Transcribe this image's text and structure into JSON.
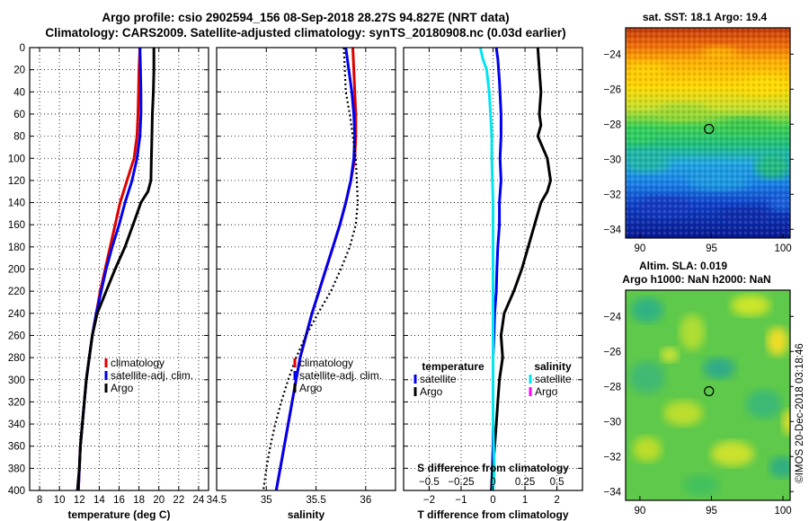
{
  "titles": {
    "line1": "Argo profile: csio 2902594_156 08-Sep-2018 28.27S 94.827E (NRT data)",
    "line2": "Climatology: CARS2009. Satellite-adjusted climatology: synTS_20180908.nc (0.03d earlier)"
  },
  "chart_data": [
    {
      "type": "line",
      "name": "temperature",
      "xlabel": "temperature (deg C)",
      "xlim": [
        7,
        25
      ],
      "xticks": [
        8,
        10,
        12,
        14,
        16,
        18,
        20,
        22,
        24
      ],
      "ylim": [
        0,
        400
      ],
      "yticks": [
        0,
        20,
        40,
        60,
        80,
        100,
        120,
        140,
        160,
        180,
        200,
        220,
        240,
        260,
        280,
        300,
        320,
        340,
        360,
        380,
        400
      ],
      "grid": true,
      "legend": [
        "climatology",
        "satellite-adj. clim.",
        "Argo"
      ],
      "series": [
        {
          "name": "climatology",
          "color": "#e00000",
          "style": "solid",
          "depth": [
            0,
            20,
            40,
            60,
            80,
            100,
            120,
            140,
            160,
            180,
            200,
            220,
            240,
            260,
            280,
            300,
            320,
            340,
            360,
            380,
            400
          ],
          "values": [
            18.1,
            18.0,
            17.95,
            17.9,
            17.8,
            17.5,
            16.8,
            16.1,
            15.6,
            15.1,
            14.6,
            14.1,
            13.7,
            13.3,
            13.0,
            12.7,
            12.5,
            12.3,
            12.1,
            12.0,
            11.9
          ]
        },
        {
          "name": "satellite-adj. clim.",
          "color": "#0000ee",
          "style": "solid",
          "depth": [
            0,
            20,
            40,
            60,
            80,
            100,
            120,
            140,
            160,
            180,
            200,
            220,
            240,
            260,
            280,
            300,
            320,
            340,
            360,
            380,
            400
          ],
          "values": [
            18.1,
            18.15,
            18.2,
            18.2,
            18.1,
            17.8,
            17.3,
            16.6,
            16.0,
            15.3,
            14.7,
            14.2,
            13.7,
            13.3,
            13.0,
            12.7,
            12.5,
            12.3,
            12.1,
            12.0,
            11.9
          ]
        },
        {
          "name": "Argo",
          "color": "#000000",
          "style": "solid",
          "depth": [
            0,
            20,
            40,
            60,
            80,
            100,
            120,
            130,
            140,
            160,
            180,
            200,
            220,
            240,
            260,
            280,
            300,
            320,
            340,
            360,
            380,
            400
          ],
          "values": [
            19.5,
            19.5,
            19.45,
            19.35,
            19.3,
            19.25,
            19.2,
            18.9,
            18.2,
            17.4,
            16.6,
            15.6,
            14.7,
            13.8,
            13.3,
            13.0,
            12.7,
            12.5,
            12.3,
            12.1,
            12.0,
            11.8
          ]
        }
      ]
    },
    {
      "type": "line",
      "name": "salinity",
      "xlabel": "salinity",
      "xlim": [
        34.5,
        36.3
      ],
      "xticks": [
        "34.5",
        "35",
        "35.5",
        "36"
      ],
      "ylim": [
        0,
        400
      ],
      "grid": true,
      "legend": [
        "climatology",
        "satellite-adj. clim.",
        "Argo"
      ],
      "series": [
        {
          "name": "climatology",
          "color": "#e00000",
          "style": "solid",
          "depth": [
            0,
            20,
            40,
            60,
            80,
            100,
            120,
            140,
            160,
            180,
            200,
            220,
            240,
            260,
            280,
            300,
            320,
            340,
            360,
            380,
            400
          ],
          "values": [
            35.87,
            35.88,
            35.89,
            35.9,
            35.9,
            35.89,
            35.85,
            35.8,
            35.74,
            35.67,
            35.6,
            35.53,
            35.46,
            35.4,
            35.34,
            35.3,
            35.26,
            35.22,
            35.18,
            35.14,
            35.1
          ]
        },
        {
          "name": "satellite-adj. clim.",
          "color": "#0000ee",
          "style": "solid",
          "depth": [
            0,
            20,
            40,
            60,
            80,
            100,
            120,
            140,
            160,
            180,
            200,
            220,
            240,
            260,
            280,
            300,
            320,
            340,
            360,
            380,
            400
          ],
          "values": [
            35.8,
            35.83,
            35.86,
            35.88,
            35.89,
            35.88,
            35.85,
            35.8,
            35.74,
            35.67,
            35.6,
            35.53,
            35.46,
            35.4,
            35.34,
            35.3,
            35.26,
            35.22,
            35.18,
            35.14,
            35.1
          ]
        },
        {
          "name": "Argo",
          "color": "#000000",
          "style": "dotted",
          "depth": [
            0,
            20,
            40,
            60,
            80,
            100,
            120,
            140,
            160,
            180,
            200,
            220,
            240,
            260,
            280,
            300,
            320,
            340,
            360,
            380,
            400
          ],
          "values": [
            35.78,
            35.79,
            35.8,
            35.84,
            35.87,
            35.9,
            35.91,
            35.92,
            35.9,
            35.84,
            35.75,
            35.65,
            35.52,
            35.4,
            35.3,
            35.22,
            35.15,
            35.09,
            35.04,
            35.0,
            34.97
          ]
        }
      ]
    },
    {
      "type": "line",
      "name": "differences",
      "xlabel": "T difference from climatology",
      "xlabel2": "S difference from climatology",
      "xlim": [
        -2.8,
        2.8
      ],
      "xticks": [
        "-2",
        "-1",
        "0",
        "1",
        "2"
      ],
      "xticks2": [
        "-0.5",
        "-0.25",
        "0",
        "0.25",
        "0.5"
      ],
      "xlim2": [
        -0.7,
        0.7
      ],
      "ylim": [
        0,
        400
      ],
      "grid": true,
      "legend_temperature_title": "temperature",
      "legend_salinity_title": "salinity",
      "legend_temperature": [
        "satellite",
        "Argo"
      ],
      "legend_salinity": [
        "satellite",
        "Argo"
      ],
      "series": [
        {
          "name": "T satellite",
          "color": "#0000ee",
          "style": "solid",
          "axis": "T",
          "depth": [
            0,
            10,
            30,
            60,
            80,
            100,
            120,
            140,
            160,
            180,
            200,
            220,
            240,
            260,
            280,
            300,
            320,
            340,
            360,
            380,
            400
          ],
          "values": [
            0.1,
            0.15,
            0.2,
            0.25,
            0.25,
            0.22,
            0.25,
            0.2,
            0.2,
            0.15,
            0.12,
            0.1,
            0.05,
            0.03,
            0.0,
            0.0,
            0.0,
            0.0,
            0.0,
            -0.02,
            -0.05
          ]
        },
        {
          "name": "T Argo",
          "color": "#000000",
          "style": "solid",
          "axis": "T",
          "depth": [
            0,
            20,
            40,
            60,
            70,
            80,
            100,
            120,
            130,
            140,
            160,
            180,
            200,
            220,
            240,
            260,
            280,
            300,
            320,
            340,
            360,
            380,
            400
          ],
          "values": [
            1.4,
            1.45,
            1.5,
            1.45,
            1.5,
            1.4,
            1.7,
            1.8,
            1.7,
            1.5,
            1.3,
            1.1,
            0.9,
            0.65,
            0.35,
            0.25,
            0.3,
            0.2,
            0.15,
            0.1,
            0.05,
            0.0,
            -0.05
          ]
        },
        {
          "name": "S satellite",
          "color": "#00e5ee",
          "style": "solid",
          "axis": "S",
          "depth": [
            0,
            10,
            20,
            40,
            60,
            80,
            100,
            140,
            180,
            220,
            260,
            300,
            340,
            380,
            400
          ],
          "values": [
            -0.1,
            -0.08,
            -0.05,
            -0.03,
            -0.02,
            -0.01,
            -0.01,
            0.0,
            0.0,
            0.0,
            0.0,
            0.0,
            0.0,
            0.01,
            0.0
          ]
        }
      ]
    },
    {
      "type": "heatmap",
      "name": "sst-map",
      "title": "sat. SST: 18.1 Argo: 19.4",
      "xticks": [
        "90",
        "95",
        "100"
      ],
      "yticks": [
        "-24",
        "-26",
        "-28",
        "-30",
        "-32",
        "-34"
      ],
      "xlim": [
        89,
        100.5
      ],
      "ylim": [
        -34.5,
        -22.5
      ],
      "marker": {
        "lon": 94.827,
        "lat": -28.27
      }
    },
    {
      "type": "heatmap",
      "name": "sla-map",
      "title1": "Altim. SLA: 0.019",
      "title2": "Argo h1000: NaN h2000: NaN",
      "xticks": [
        "90",
        "95",
        "100"
      ],
      "yticks": [
        "-24",
        "-26",
        "-28",
        "-30",
        "-32",
        "-34"
      ],
      "xlim": [
        89,
        100.5
      ],
      "ylim": [
        -34.5,
        -22.5
      ],
      "marker": {
        "lon": 94.827,
        "lat": -28.27
      }
    }
  ],
  "credit": "©IMOS 20-Dec-2018 03:18:46"
}
